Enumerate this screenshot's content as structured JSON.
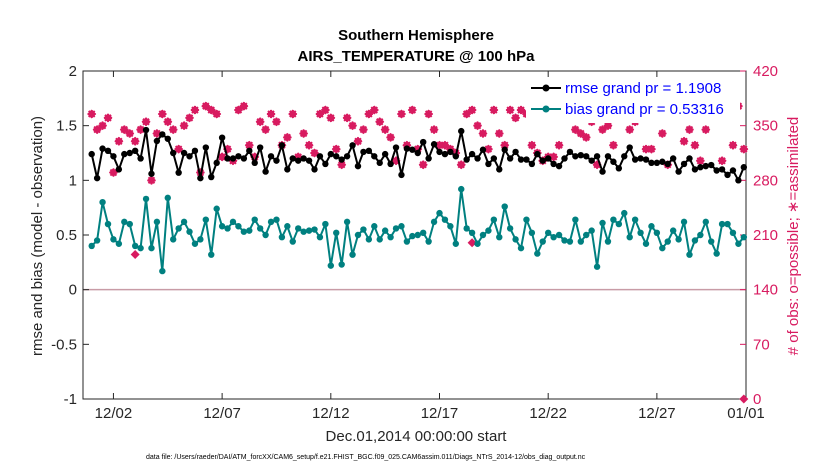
{
  "chart_data": {
    "type": "line",
    "title": "Southern Hemisphere",
    "subtitle": "AIRS_TEMPERATURE @ 100 hPa",
    "xlabel": "Dec.01,2014 00:00:00 start",
    "ylabel": "rmse and bias (model - observation)",
    "ylabel_right": "# of obs: o=possible; ∗=assimilated",
    "footnote": "data file: /Users/raeder/DAI/ATM_forcXX/CAM6_setup/f.e21.FHIST_BGC.f09_025.CAM6assim.011/Diags_NTrS_2014-12/obs_diag_output.nc",
    "xlim": [
      0.6,
      31.1
    ],
    "ylim": [
      -1,
      2
    ],
    "ylim_right": [
      0,
      420
    ],
    "x_ticks": [
      2,
      7,
      12,
      17,
      22,
      27,
      32
    ],
    "x_tick_labels": [
      "12/02",
      "12/07",
      "12/12",
      "12/17",
      "12/22",
      "12/27",
      "01/01"
    ],
    "y_ticks": [
      -1,
      -0.5,
      0,
      0.5,
      1,
      1.5,
      2
    ],
    "y_tick_labels": [
      "-1",
      "-0.5",
      "0",
      "0.5",
      "1",
      "1.5",
      "2"
    ],
    "y_right_ticks": [
      0,
      70,
      140,
      210,
      280,
      350,
      420
    ],
    "y_right_tick_labels": [
      "0",
      "70",
      "140",
      "210",
      "280",
      "350",
      "420"
    ],
    "zero_line": true,
    "legend_position": "top-right",
    "colors": {
      "rmse": "#000000",
      "bias": "#008080",
      "obs": "#d81b60",
      "zero_line": "#c89ba6",
      "legend_text": "#0000ff"
    },
    "x": [
      1.0,
      1.25,
      1.5,
      1.75,
      2.0,
      2.25,
      2.5,
      2.75,
      3.0,
      3.25,
      3.5,
      3.75,
      4.0,
      4.25,
      4.5,
      4.75,
      5.0,
      5.25,
      5.5,
      5.75,
      6.0,
      6.25,
      6.5,
      6.75,
      7.0,
      7.25,
      7.5,
      7.75,
      8.0,
      8.25,
      8.5,
      8.75,
      9.0,
      9.25,
      9.5,
      9.75,
      10.0,
      10.25,
      10.5,
      10.75,
      11.0,
      11.25,
      11.5,
      11.75,
      12.0,
      12.25,
      12.5,
      12.75,
      13.0,
      13.25,
      13.5,
      13.75,
      14.0,
      14.25,
      14.5,
      14.75,
      15.0,
      15.25,
      15.5,
      15.75,
      16.0,
      16.25,
      16.5,
      16.75,
      17.0,
      17.25,
      17.5,
      17.75,
      18.0,
      18.25,
      18.5,
      18.75,
      19.0,
      19.25,
      19.5,
      19.75,
      20.0,
      20.25,
      20.5,
      20.75,
      21.0,
      21.25,
      21.5,
      21.75,
      22.0,
      22.25,
      22.5,
      22.75,
      23.0,
      23.25,
      23.5,
      23.75,
      24.0,
      24.25,
      24.5,
      24.75,
      25.0,
      25.25,
      25.5,
      25.75,
      26.0,
      26.25,
      26.5,
      26.75,
      27.0,
      27.25,
      27.5,
      27.75,
      28.0,
      28.25,
      28.5,
      28.75,
      29.0,
      29.25,
      29.5,
      29.75,
      30.0,
      30.25,
      30.5,
      30.75,
      31.0
    ],
    "series": [
      {
        "name": "rmse",
        "legend": "rmse grand pr = 1.1908",
        "axis": "left",
        "marker": "circle",
        "values": [
          1.24,
          1.02,
          1.29,
          1.27,
          1.22,
          1.1,
          1.24,
          1.25,
          1.27,
          1.2,
          1.46,
          1.06,
          1.36,
          1.42,
          1.38,
          1.25,
          1.07,
          1.25,
          1.22,
          1.27,
          1.02,
          1.3,
          1.03,
          1.16,
          1.39,
          1.2,
          1.2,
          1.22,
          1.2,
          1.27,
          1.16,
          1.3,
          1.08,
          1.22,
          1.18,
          1.32,
          1.1,
          1.2,
          1.18,
          1.2,
          1.18,
          1.1,
          1.22,
          1.15,
          1.24,
          1.22,
          1.19,
          1.22,
          1.32,
          1.13,
          1.26,
          1.27,
          1.22,
          1.16,
          1.24,
          1.15,
          1.3,
          1.05,
          1.29,
          1.28,
          1.25,
          1.35,
          1.2,
          1.33,
          1.26,
          1.24,
          1.26,
          1.22,
          1.45,
          1.19,
          1.24,
          1.2,
          1.28,
          1.15,
          1.2,
          1.1,
          1.28,
          1.2,
          1.26,
          1.19,
          1.19,
          1.15,
          1.24,
          1.18,
          1.2,
          1.15,
          1.13,
          1.2,
          1.26,
          1.22,
          1.23,
          1.22,
          1.18,
          1.22,
          1.08,
          1.22,
          1.17,
          1.11,
          1.22,
          1.3,
          1.19,
          1.2,
          1.19,
          1.16,
          1.16,
          1.17,
          1.15,
          1.2,
          1.08,
          1.15,
          1.2,
          1.1,
          1.12,
          1.13,
          1.14,
          1.09,
          1.1,
          1.05,
          1.09,
          1.0,
          1.12
        ]
      },
      {
        "name": "bias",
        "legend": "bias grand pr = 0.53316",
        "axis": "left",
        "marker": "circle",
        "values": [
          0.4,
          0.45,
          0.8,
          0.6,
          0.46,
          0.42,
          0.62,
          0.6,
          0.4,
          0.38,
          0.83,
          0.38,
          0.62,
          0.17,
          0.84,
          0.46,
          0.56,
          0.62,
          0.53,
          0.42,
          0.46,
          0.64,
          0.32,
          0.74,
          0.58,
          0.56,
          0.62,
          0.58,
          0.53,
          0.54,
          0.64,
          0.56,
          0.5,
          0.62,
          0.64,
          0.48,
          0.58,
          0.44,
          0.56,
          0.53,
          0.54,
          0.55,
          0.48,
          0.6,
          0.22,
          0.52,
          0.23,
          0.62,
          0.32,
          0.5,
          0.55,
          0.46,
          0.58,
          0.46,
          0.54,
          0.48,
          0.56,
          0.58,
          0.44,
          0.49,
          0.5,
          0.52,
          0.44,
          0.62,
          0.7,
          0.64,
          0.58,
          0.42,
          0.92,
          0.56,
          0.52,
          0.42,
          0.5,
          0.54,
          0.64,
          0.48,
          0.76,
          0.56,
          0.46,
          0.38,
          0.64,
          0.52,
          0.33,
          0.44,
          0.52,
          0.48,
          0.5,
          0.45,
          0.44,
          0.64,
          0.44,
          0.5,
          0.54,
          0.21,
          0.61,
          0.44,
          0.64,
          0.6,
          0.7,
          0.48,
          0.64,
          0.52,
          0.42,
          0.58,
          0.52,
          0.38,
          0.44,
          0.54,
          0.46,
          0.62,
          0.32,
          0.45,
          0.5,
          0.62,
          0.44,
          0.33,
          0.6,
          0.6,
          0.52,
          0.42,
          0.48
        ]
      },
      {
        "name": "obs_possible",
        "axis": "right",
        "marker": "diamond",
        "values": [
          365,
          345,
          350,
          360,
          290,
          330,
          345,
          340,
          330,
          345,
          355,
          280,
          340,
          365,
          355,
          345,
          320,
          350,
          360,
          370,
          290,
          375,
          370,
          365,
          310,
          320,
          305,
          370,
          375,
          325,
          310,
          355,
          345,
          365,
          355,
          325,
          335,
          365,
          310,
          340,
          325,
          315,
          365,
          370,
          360,
          320,
          300,
          360,
          350,
          330,
          345,
          365,
          370,
          355,
          345,
          335,
          305,
          365,
          325,
          370,
          320,
          300,
          365,
          345,
          325,
          325,
          320,
          315,
          300,
          365,
          370,
          350,
          340,
          320,
          370,
          340,
          325,
          370,
          360,
          370,
          365,
          325,
          315,
          305,
          310,
          310,
          325,
          370,
          360,
          345,
          340,
          335,
          355,
          300,
          345,
          350,
          325,
          360,
          365,
          345,
          355,
          365,
          320,
          320,
          365,
          340,
          300,
          360,
          360,
          330,
          345,
          325,
          305,
          345,
          370,
          360,
          305,
          365,
          325,
          375,
          320
        ]
      },
      {
        "name": "obs_assimilated",
        "axis": "right",
        "marker": "asterisk",
        "values": [
          365,
          345,
          350,
          360,
          290,
          330,
          345,
          340,
          330,
          345,
          355,
          280,
          340,
          365,
          355,
          345,
          320,
          350,
          360,
          370,
          290,
          375,
          370,
          365,
          310,
          320,
          305,
          370,
          375,
          325,
          310,
          355,
          345,
          365,
          355,
          325,
          335,
          365,
          310,
          340,
          325,
          315,
          365,
          370,
          360,
          320,
          300,
          360,
          350,
          330,
          345,
          365,
          370,
          355,
          345,
          335,
          305,
          365,
          325,
          370,
          320,
          300,
          365,
          345,
          325,
          325,
          320,
          315,
          300,
          365,
          370,
          350,
          340,
          320,
          370,
          340,
          325,
          370,
          360,
          370,
          365,
          325,
          315,
          305,
          310,
          310,
          325,
          370,
          360,
          345,
          340,
          335,
          355,
          300,
          345,
          350,
          325,
          360,
          365,
          345,
          355,
          365,
          320,
          320,
          365,
          340,
          300,
          360,
          360,
          330,
          345,
          325,
          305,
          345,
          370,
          360,
          305,
          365,
          325,
          375,
          320
        ]
      }
    ],
    "obs_outliers": [
      {
        "x": 3.0,
        "y": 185
      },
      {
        "x": 18.5,
        "y": 200
      },
      {
        "x": 31.0,
        "y": 0
      }
    ]
  }
}
